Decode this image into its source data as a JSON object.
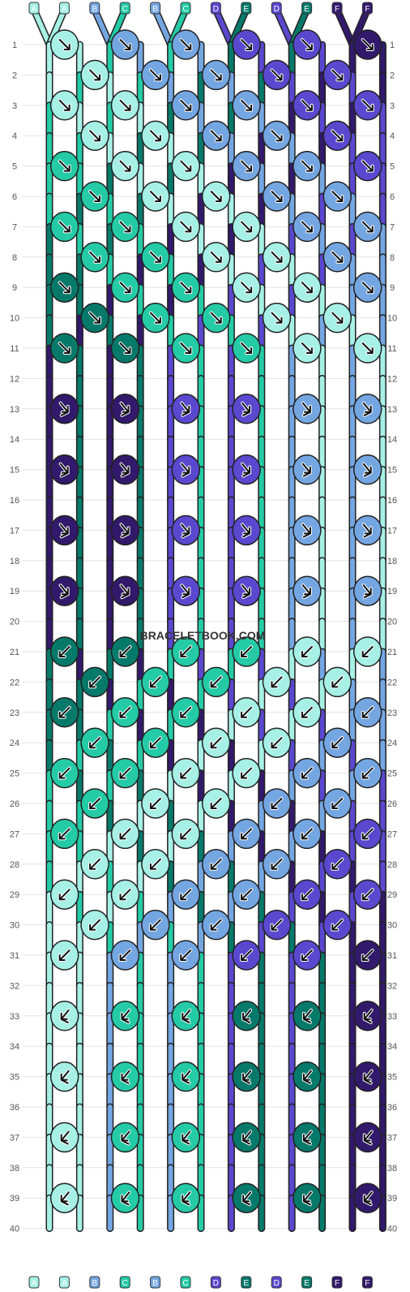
{
  "watermark": "BRACELETBOOK.COM",
  "colors": {
    "A": "#a6f0e6",
    "B": "#74a6e2",
    "C": "#24cba6",
    "D": "#5a48cf",
    "E": "#067a6a",
    "F": "#32196c"
  },
  "strings_top": [
    "A",
    "A",
    "B",
    "C",
    "B",
    "C",
    "D",
    "E",
    "D",
    "E",
    "F",
    "F"
  ],
  "strings_bottom": [
    "A",
    "A",
    "B",
    "C",
    "B",
    "C",
    "D",
    "E",
    "D",
    "E",
    "F",
    "F"
  ],
  "row_count": 40,
  "row_labels": [
    "1",
    "2",
    "3",
    "4",
    "5",
    "6",
    "7",
    "8",
    "9",
    "10",
    "11",
    "12",
    "13",
    "14",
    "15",
    "16",
    "17",
    "18",
    "19",
    "20",
    "21",
    "22",
    "23",
    "24",
    "25",
    "26",
    "27",
    "28",
    "29",
    "30",
    "31",
    "32",
    "33",
    "34",
    "35",
    "36",
    "37",
    "38",
    "39",
    "40"
  ],
  "knot_rows": [
    [
      "R",
      "R",
      "R",
      "R",
      "R",
      "R"
    ],
    [
      "R",
      "R",
      "R",
      "R",
      "R"
    ],
    [
      "R",
      "R",
      "R",
      "R",
      "R",
      "R"
    ],
    [
      "R",
      "R",
      "R",
      "R",
      "R"
    ],
    [
      "R",
      "R",
      "R",
      "R",
      "R",
      "R"
    ],
    [
      "R",
      "R",
      "R",
      "R",
      "R"
    ],
    [
      "R",
      "R",
      "R",
      "R",
      "R",
      "R"
    ],
    [
      "R",
      "R",
      "R",
      "R",
      "R"
    ],
    [
      "R",
      "R",
      "R",
      "R",
      "R",
      "R"
    ],
    [
      "R",
      "R",
      "R",
      "R",
      "R"
    ],
    [
      "R",
      "R",
      "R",
      "R",
      "R",
      "R"
    ],
    [],
    [
      "RL",
      "RL",
      "RL",
      "RL",
      "RL",
      "RL"
    ],
    [],
    [
      "RL",
      "RL",
      "RL",
      "RL",
      "RL",
      "RL"
    ],
    [],
    [
      "RL",
      "RL",
      "RL",
      "RL",
      "RL",
      "RL"
    ],
    [],
    [
      "RL",
      "RL",
      "RL",
      "RL",
      "RL",
      "RL"
    ],
    [],
    [
      "L",
      "L",
      "L",
      "L",
      "L",
      "L"
    ],
    [
      "L",
      "L",
      "L",
      "L",
      "L"
    ],
    [
      "L",
      "L",
      "L",
      "L",
      "L",
      "L"
    ],
    [
      "L",
      "L",
      "L",
      "L",
      "L"
    ],
    [
      "L",
      "L",
      "L",
      "L",
      "L",
      "L"
    ],
    [
      "L",
      "L",
      "L",
      "L",
      "L"
    ],
    [
      "L",
      "L",
      "L",
      "L",
      "L",
      "L"
    ],
    [
      "L",
      "L",
      "L",
      "L",
      "L"
    ],
    [
      "L",
      "L",
      "L",
      "L",
      "L",
      "L"
    ],
    [
      "L",
      "L",
      "L",
      "L",
      "L"
    ],
    [
      "L",
      "L",
      "L",
      "L",
      "L",
      "L"
    ],
    [],
    [
      "LR",
      "LR",
      "LR",
      "LR",
      "LR",
      "LR"
    ],
    [],
    [
      "LR",
      "LR",
      "LR",
      "LR",
      "LR",
      "LR"
    ],
    [],
    [
      "LR",
      "LR",
      "LR",
      "LR",
      "LR",
      "LR"
    ],
    [],
    [
      "LR",
      "LR",
      "LR",
      "LR",
      "LR",
      "LR"
    ],
    []
  ]
}
